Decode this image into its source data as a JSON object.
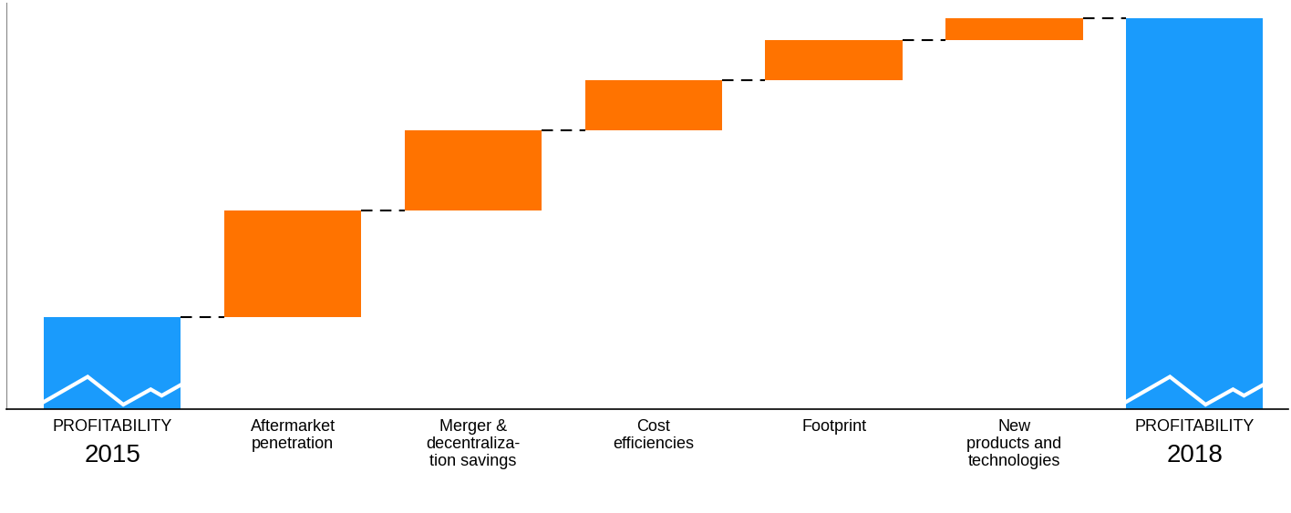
{
  "chart_data": {
    "type": "waterfall",
    "categories": [
      "PROFITABILITY\n2015",
      "Aftermarket\npenetration",
      "Merger &\ndecentraliza-\ntion savings",
      "Cost\nefficiencies",
      "Footprint",
      "New\nproducts and\ntechnologies",
      "PROFITABILITY\n2018"
    ],
    "values": [
      23.5,
      27.3,
      20.6,
      12.7,
      10.2,
      5.7,
      100
    ],
    "colors": [
      "#1a9bfc",
      "#ff7300",
      "#ff7300",
      "#ff7300",
      "#ff7300",
      "#ff7300",
      "#1a9bfc"
    ],
    "ylim": [
      0,
      104
    ],
    "tick_labels": false,
    "grid": false
  }
}
